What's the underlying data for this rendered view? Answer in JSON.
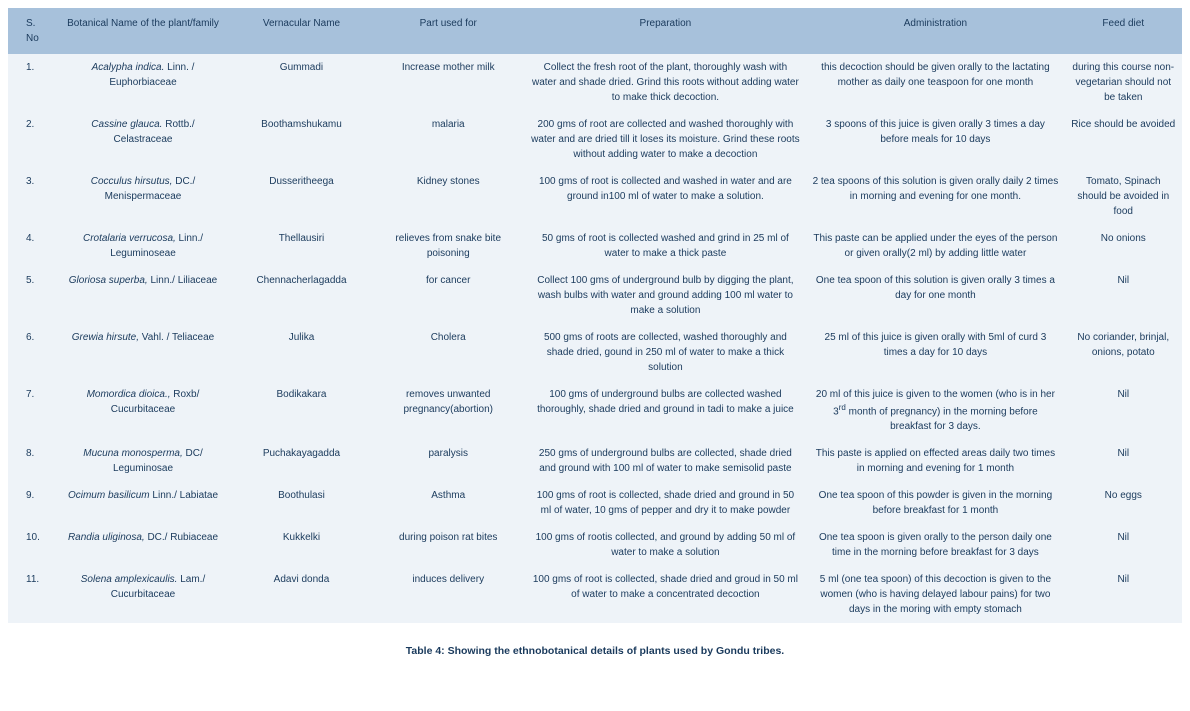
{
  "table": {
    "headers": {
      "sno": "S. No",
      "botanical": "Botanical Name of the plant/family",
      "vernacular": "Vernacular Name",
      "part": "Part used for",
      "preparation": "Preparation",
      "administration": "Administration",
      "feed": "Feed diet"
    },
    "rows": [
      {
        "sno": "1.",
        "species": "Acalypha indica.",
        "auth_family": " Linn. / Euphorbiaceae",
        "vernacular": "Gummadi",
        "part": "Increase mother milk",
        "preparation": "Collect the fresh root of the plant, thoroughly wash with water and shade dried. Grind this roots without adding water to make thick decoction.",
        "administration": "this decoction should be given orally to the lactating mother as daily one teaspoon for one month",
        "feed": "during this  course non-vegetarian should not be taken"
      },
      {
        "sno": "2.",
        "species": "Cassine glauca.",
        "auth_family": " Rottb./ Celastraceae",
        "vernacular": "Boothamshukamu",
        "part": "malaria",
        "preparation": "200 gms of root are collected and washed thoroughly with water and are dried till it loses its moisture. Grind these roots without adding water to make a decoction",
        "administration": "3 spoons of this juice is given orally 3 times a day before meals for 10 days",
        "feed": "Rice should be avoided"
      },
      {
        "sno": "3.",
        "species": "Cocculus hirsutus,",
        "auth_family": " DC./ Menispermaceae",
        "vernacular": "Dusseritheega",
        "part": "Kidney stones",
        "preparation": "100 gms of root is collected and washed in water and are ground in100 ml of  water to make a solution.",
        "administration": "2 tea spoons of this solution is given orally daily 2 times in morning and evening for one month.",
        "feed": "Tomato, Spinach should be avoided in food"
      },
      {
        "sno": "4.",
        "species": "Crotalaria verrucosa,",
        "auth_family": " Linn./  Leguminoseae",
        "vernacular": "Thellausiri",
        "part": "relieves from snake bite poisoning",
        "preparation": "50 gms of root is collected washed and grind in 25 ml of water to make a thick paste",
        "administration": "This paste can be applied under the eyes of the person or given orally(2 ml) by adding little water",
        "feed": "No onions"
      },
      {
        "sno": "5.",
        "species": "Gloriosa superba,",
        "auth_family": " Linn./ Liliaceae",
        "vernacular": "Chennacherlagadda",
        "part": "for cancer",
        "preparation": "Collect 100 gms of  underground bulb by digging the plant, wash bulbs with water and ground adding 100 ml water to make a solution",
        "administration": "One tea spoon of this solution is given orally 3 times a day for one month",
        "feed": "Nil"
      },
      {
        "sno": "6.",
        "species": "Grewia   hirsute,",
        "auth_family": " Vahl. / Teliaceae",
        "vernacular": "Julika",
        "part": "Cholera",
        "preparation": "500 gms of roots are collected, washed thoroughly and shade dried, gound in 250 ml of water to make a thick solution",
        "administration": "25 ml of this juice is given orally with 5ml of curd 3 times a day for 10 days",
        "feed": "No coriander, brinjal, onions, potato"
      },
      {
        "sno": "7.",
        "species": "Momordica dioica.,",
        "auth_family": "  Roxb/ Cucurbitaceae",
        "vernacular": "Bodikakara",
        "part": "removes unwanted pregnancy(abortion)",
        "preparation": "100 gms of  underground bulbs are collected washed thoroughly, shade dried and ground in tadi to make a juice",
        "administration": "20 ml of this juice is given to the women (who is in her 3rd month of pregnancy) in the morning before breakfast for 3 days.",
        "feed": "Nil"
      },
      {
        "sno": "8.",
        "species": "Mucuna monosperma,",
        "auth_family": " DC/  Leguminosae",
        "vernacular": "Puchakayagadda",
        "part": "paralysis",
        "preparation": "250 gms of  underground bulbs are collected, shade dried and ground with 100 ml of water to make semisolid paste",
        "administration": "This paste is applied on effected areas daily two times in morning and evening for 1 month",
        "feed": "Nil"
      },
      {
        "sno": "9.",
        "species": "Ocimum basilicum",
        "auth_family": " Linn./ Labiatae",
        "vernacular": "Boothulasi",
        "part": "Asthma",
        "preparation": "100 gms of root is collected, shade dried and ground in 50 ml of water, 10 gms of pepper and dry it to make powder",
        "administration": "One tea spoon of this powder is given in the morning before breakfast for 1 month",
        "feed": "No eggs"
      },
      {
        "sno": "10.",
        "species": "Randia uliginosa,",
        "auth_family": " DC./ Rubiaceae",
        "vernacular": "Kukkelki",
        "part": "during poison rat bites",
        "preparation": "100 gms of rootis  collected, and ground by adding 50 ml of water to make a solution",
        "administration": "One tea spoon is given orally to the person daily one time in the morning before breakfast for 3 days",
        "feed": "Nil"
      },
      {
        "sno": "11.",
        "species": "Solena amplexicaulis.",
        "auth_family": " Lam./ Cucurbitaceae",
        "vernacular": "Adavi donda",
        "part": "induces delivery",
        "preparation": "100 gms of root is collected, shade dried and groud in 50 ml of water to make a concentrated decoction",
        "administration": "5 ml (one tea spoon) of this decoction is given to the women (who is having delayed labour pains) for two days in the moring with empty stomach",
        "feed": "Nil"
      }
    ]
  },
  "caption": "Table 4: Showing the ethnobotanical details of  plants used by Gondu tribes.",
  "colors": {
    "header_bg": "#a7c1db",
    "body_bg": "#eef3f8",
    "text": "#1a3a5c"
  }
}
